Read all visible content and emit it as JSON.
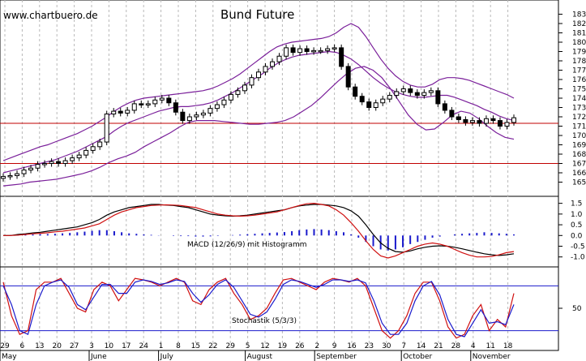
{
  "colors": {
    "background": "#ffffff",
    "grid": "#b8b8b8",
    "candle": "#000000",
    "bollinger": "#7a1f9a",
    "support_line": "#c00000",
    "macd_line": "#000000",
    "signal_line": "#d01010",
    "histogram": "#1a1acc",
    "stoch_k": "#d01010",
    "stoch_d": "#1a1acc",
    "stoch_level": "#1a1acc"
  },
  "watermark": "www.chartbuero.de",
  "chart_data": [
    {
      "id": "price",
      "type": "candlestick",
      "title": "Bund Future",
      "xlabel": "",
      "ylabel": "",
      "ylim": [
        164,
        184
      ],
      "yticks": [
        "183",
        "182",
        "181",
        "180",
        "179",
        "178",
        "177",
        "176",
        "175",
        "174",
        "173",
        "172",
        "171",
        "170",
        "169",
        "168",
        "167",
        "166",
        "165"
      ],
      "horizontal_lines": [
        171.3,
        167.0
      ],
      "close": [
        165.6,
        165.7,
        165.9,
        166.3,
        166.5,
        166.9,
        167.0,
        167.2,
        167.0,
        167.3,
        167.6,
        167.9,
        168.4,
        168.8,
        169.3,
        172.3,
        172.6,
        172.4,
        172.7,
        173.4,
        173.3,
        173.4,
        173.8,
        174.0,
        173.5,
        172.5,
        171.6,
        172.0,
        172.2,
        172.4,
        172.9,
        173.3,
        173.8,
        174.4,
        174.8,
        175.4,
        176.2,
        176.8,
        177.4,
        177.9,
        178.5,
        179.4,
        178.9,
        179.3,
        179.0,
        179.1,
        179.1,
        179.3,
        179.4,
        177.4,
        175.2,
        174.2,
        173.6,
        173.0,
        173.5,
        173.9,
        174.3,
        174.7,
        175.0,
        174.6,
        174.3,
        174.6,
        174.8,
        173.4,
        172.7,
        172.0,
        171.7,
        171.4,
        171.6,
        171.3,
        171.8,
        171.6,
        171.0,
        171.4,
        171.9
      ],
      "bollinger_upper": [
        167.3,
        167.6,
        167.9,
        168.2,
        168.5,
        168.8,
        169.0,
        169.3,
        169.6,
        169.9,
        170.2,
        170.6,
        171.0,
        171.5,
        172.0,
        172.6,
        173.1,
        173.5,
        173.8,
        174.0,
        174.1,
        174.2,
        174.3,
        174.4,
        174.5,
        174.6,
        174.7,
        174.8,
        175.0,
        175.3,
        175.7,
        176.1,
        176.6,
        177.2,
        177.8,
        178.4,
        179.0,
        179.5,
        179.8,
        180.0,
        180.1,
        180.2,
        180.3,
        180.4,
        180.6,
        181.0,
        181.6,
        182.0,
        181.6,
        180.6,
        179.4,
        178.2,
        177.2,
        176.4,
        175.8,
        175.4,
        175.2,
        175.2,
        175.5,
        176.0,
        176.2,
        176.2,
        176.1,
        175.9,
        175.6,
        175.3,
        175.0,
        174.7,
        174.4,
        174.0
      ],
      "bollinger_middle": [
        166.0,
        166.2,
        166.4,
        166.6,
        166.8,
        167.0,
        167.2,
        167.4,
        167.7,
        168.0,
        168.3,
        168.7,
        169.1,
        169.5,
        169.9,
        170.5,
        171.0,
        171.4,
        171.7,
        172.0,
        172.3,
        172.6,
        172.8,
        173.0,
        173.1,
        173.1,
        173.2,
        173.3,
        173.5,
        173.8,
        174.2,
        174.6,
        175.1,
        175.6,
        176.1,
        176.6,
        177.2,
        177.7,
        178.1,
        178.4,
        178.6,
        178.7,
        178.8,
        178.9,
        179.0,
        178.9,
        178.6,
        178.2,
        177.6,
        176.9,
        176.2,
        175.6,
        175.1,
        174.7,
        174.4,
        174.2,
        174.1,
        174.1,
        174.2,
        174.3,
        174.3,
        174.1,
        173.8,
        173.5,
        173.2,
        172.8,
        172.5,
        172.1,
        171.8,
        171.6
      ],
      "bollinger_lower": [
        164.6,
        164.7,
        164.8,
        165.0,
        165.1,
        165.2,
        165.3,
        165.5,
        165.7,
        165.9,
        166.2,
        166.6,
        167.1,
        167.5,
        167.8,
        168.2,
        168.8,
        169.3,
        169.8,
        170.3,
        170.9,
        171.4,
        171.6,
        171.6,
        171.6,
        171.5,
        171.4,
        171.3,
        171.2,
        171.2,
        171.3,
        171.4,
        171.6,
        172.0,
        172.6,
        173.2,
        174.0,
        174.9,
        175.8,
        176.6,
        177.2,
        177.4,
        177.0,
        176.2,
        175.0,
        173.6,
        172.2,
        171.2,
        170.6,
        170.7,
        171.4,
        172.2,
        172.6,
        172.4,
        171.8,
        171.0,
        170.3,
        169.8,
        169.6
      ]
    },
    {
      "id": "macd",
      "type": "line",
      "title": "MACD (12/26/9) mit Histogramm",
      "ylim": [
        -1.2,
        1.6
      ],
      "yticks": [
        "1.5",
        "1.0",
        "0.5",
        "0.0",
        "-0.5",
        "-1.0"
      ],
      "series": [
        {
          "values": [
            0.0,
            0.0,
            0.05,
            0.08,
            0.12,
            0.15,
            0.2,
            0.25,
            0.3,
            0.35,
            0.4,
            0.5,
            0.6,
            0.75,
            0.95,
            1.1,
            1.2,
            1.3,
            1.35,
            1.4,
            1.45,
            1.45,
            1.42,
            1.4,
            1.35,
            1.3,
            1.2,
            1.1,
            1.0,
            0.95,
            0.92,
            0.9,
            0.92,
            0.95,
            1.0,
            1.05,
            1.1,
            1.15,
            1.2,
            1.3,
            1.38,
            1.42,
            1.45,
            1.45,
            1.42,
            1.38,
            1.3,
            1.15,
            0.9,
            0.5,
            0.05,
            -0.35,
            -0.6,
            -0.75,
            -0.78,
            -0.72,
            -0.62,
            -0.55,
            -0.5,
            -0.48,
            -0.5,
            -0.55,
            -0.62,
            -0.7,
            -0.78,
            -0.85,
            -0.9,
            -0.93,
            -0.9,
            -0.85
          ]
        },
        {
          "values": [
            0.0,
            0.0,
            0.02,
            0.05,
            0.08,
            0.1,
            0.13,
            0.17,
            0.2,
            0.25,
            0.3,
            0.35,
            0.45,
            0.55,
            0.75,
            0.95,
            1.1,
            1.2,
            1.3,
            1.35,
            1.4,
            1.42,
            1.43,
            1.42,
            1.4,
            1.35,
            1.3,
            1.2,
            1.1,
            1.0,
            0.95,
            0.92,
            0.9,
            0.92,
            0.95,
            1.0,
            1.05,
            1.1,
            1.2,
            1.3,
            1.4,
            1.48,
            1.5,
            1.45,
            1.38,
            1.2,
            0.95,
            0.6,
            0.2,
            -0.25,
            -0.65,
            -0.95,
            -1.05,
            -0.95,
            -0.8,
            -0.65,
            -0.5,
            -0.4,
            -0.35,
            -0.4,
            -0.5,
            -0.65,
            -0.8,
            -0.92,
            -1.0,
            -1.0,
            -0.98,
            -0.9,
            -0.8,
            -0.75
          ]
        },
        {
          "values": [
            0.0,
            0.02,
            0.04,
            0.05,
            0.05,
            0.06,
            0.07,
            0.08,
            0.1,
            0.12,
            0.15,
            0.18,
            0.22,
            0.25,
            0.25,
            0.2,
            0.15,
            0.1,
            0.08,
            0.05,
            0.03,
            0.01,
            0.0,
            -0.02,
            -0.03,
            -0.03,
            -0.05,
            -0.05,
            -0.04,
            -0.02,
            0.0,
            0.02,
            0.04,
            0.06,
            0.08,
            0.1,
            0.12,
            0.14,
            0.16,
            0.2,
            0.25,
            0.28,
            0.3,
            0.28,
            0.25,
            0.2,
            0.15,
            0.05,
            -0.1,
            -0.3,
            -0.5,
            -0.65,
            -0.7,
            -0.65,
            -0.55,
            -0.4,
            -0.3,
            -0.2,
            -0.1,
            -0.05,
            0.0,
            0.05,
            0.08,
            0.1,
            0.12,
            0.15,
            0.12,
            0.1,
            0.08,
            0.05
          ]
        }
      ]
    },
    {
      "id": "stochastic",
      "type": "line",
      "title": "Stochastik (5/3/3)",
      "ylim": [
        0,
        100
      ],
      "yticks": [
        "50"
      ],
      "levels": [
        80,
        20
      ],
      "series": [
        {
          "values": [
            85,
            40,
            15,
            20,
            75,
            85,
            85,
            90,
            70,
            50,
            45,
            75,
            85,
            80,
            60,
            75,
            90,
            88,
            85,
            80,
            85,
            90,
            85,
            60,
            55,
            75,
            85,
            90,
            70,
            55,
            35,
            40,
            50,
            70,
            88,
            90,
            85,
            80,
            75,
            85,
            90,
            88,
            85,
            90,
            80,
            50,
            20,
            10,
            20,
            40,
            70,
            85,
            85,
            60,
            25,
            10,
            15,
            40,
            55,
            20,
            35,
            25,
            70
          ]
        },
        {
          "values": [
            80,
            55,
            20,
            15,
            55,
            80,
            85,
            88,
            78,
            55,
            48,
            65,
            82,
            82,
            70,
            70,
            85,
            88,
            86,
            82,
            84,
            88,
            86,
            70,
            58,
            68,
            82,
            88,
            78,
            60,
            42,
            38,
            45,
            62,
            82,
            88,
            86,
            82,
            78,
            82,
            88,
            88,
            86,
            88,
            84,
            60,
            30,
            15,
            15,
            30,
            60,
            80,
            86,
            68,
            35,
            15,
            12,
            30,
            48,
            30,
            32,
            28,
            55
          ]
        }
      ]
    }
  ],
  "x_axis": {
    "day_labels": [
      "29",
      "6",
      "13",
      "20",
      "27",
      "3",
      "10",
      "17",
      "24",
      "1",
      "8",
      "15",
      "22",
      "29",
      "5",
      "12",
      "19",
      "26",
      "2",
      "9",
      "16",
      "23",
      "30",
      "7",
      "14",
      "21",
      "28",
      "4",
      "11",
      "18"
    ],
    "month_labels": [
      "May",
      "June",
      "July",
      "August",
      "September",
      "October",
      "November"
    ]
  }
}
